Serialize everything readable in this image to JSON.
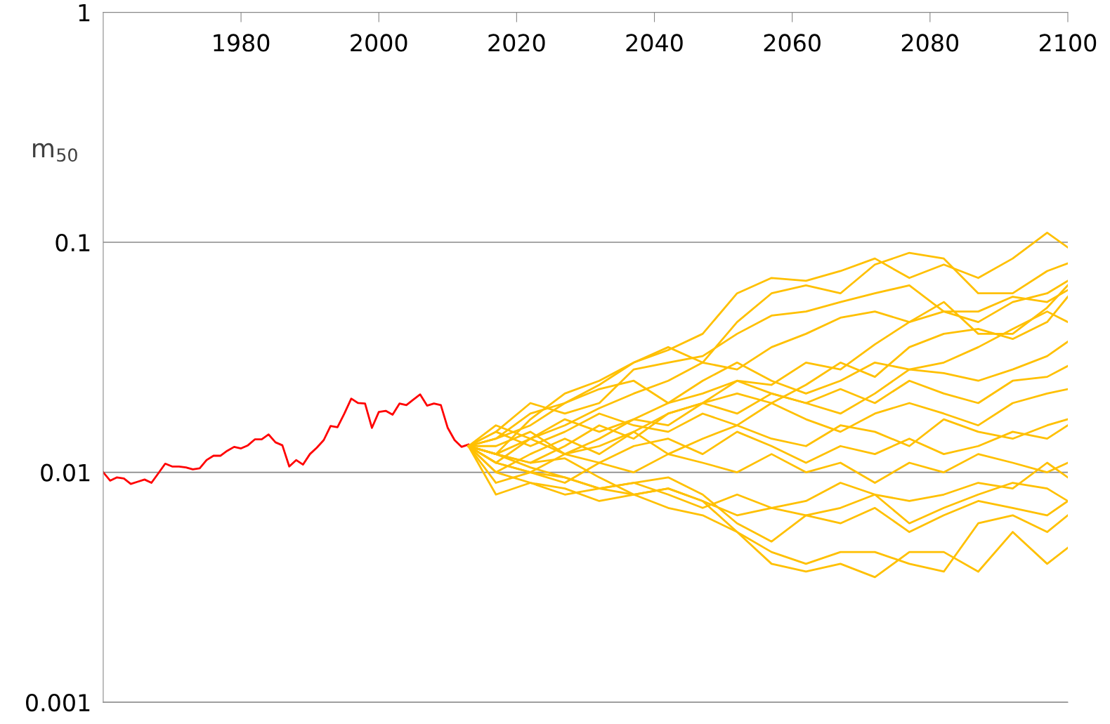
{
  "chart_data": {
    "type": "line",
    "ylabel": "m$_{50}$",
    "log": "y",
    "grid": "y",
    "line_style": "solid",
    "marker": "none",
    "xlim": [
      1960,
      2100
    ],
    "xticks": [
      1980,
      2000,
      2020,
      2040,
      2060,
      2080,
      2100
    ],
    "ylim": [
      0.001,
      1
    ],
    "yticks": [
      0.001,
      0.01,
      0.1,
      1
    ],
    "x": [
      2013,
      2017,
      2022,
      2027,
      2032,
      2037,
      2042,
      2047,
      2052,
      2057,
      2062,
      2067,
      2072,
      2077,
      2082,
      2087,
      2092,
      2097,
      2100
    ],
    "series": [
      {
        "color": "#ff0000",
        "x": [
          1960,
          1961,
          1962,
          1963,
          1964,
          1965,
          1966,
          1967,
          1968,
          1969,
          1970,
          1971,
          1972,
          1973,
          1974,
          1975,
          1976,
          1977,
          1978,
          1979,
          1980,
          1981,
          1982,
          1983,
          1984,
          1985,
          1986,
          1987,
          1988,
          1989,
          1990,
          1991,
          1992,
          1993,
          1994,
          1995,
          1996,
          1997,
          1998,
          1999,
          2000,
          2001,
          2002,
          2003,
          2004,
          2005,
          2006,
          2007,
          2008,
          2009,
          2010,
          2011,
          2012,
          2013
        ],
        "values": [
          0.01,
          0.0092,
          0.0095,
          0.0094,
          0.0089,
          0.0091,
          0.0093,
          0.009,
          0.0099,
          0.0109,
          0.0106,
          0.0106,
          0.0105,
          0.0103,
          0.0104,
          0.0113,
          0.0118,
          0.0118,
          0.0124,
          0.0129,
          0.0127,
          0.0131,
          0.0139,
          0.0139,
          0.0146,
          0.0135,
          0.0131,
          0.0106,
          0.0113,
          0.0108,
          0.012,
          0.0128,
          0.0138,
          0.0159,
          0.0157,
          0.018,
          0.0209,
          0.02,
          0.0199,
          0.0156,
          0.0183,
          0.0185,
          0.0178,
          0.0199,
          0.0196,
          0.0207,
          0.0218,
          0.0195,
          0.0199,
          0.0196,
          0.0156,
          0.0138,
          0.0129,
          0.0132
        ]
      },
      {
        "color": "#ffc000",
        "values": [
          0.013,
          0.014,
          0.018,
          0.02,
          0.024,
          0.03,
          0.034,
          0.04,
          0.06,
          0.07,
          0.068,
          0.075,
          0.085,
          0.07,
          0.08,
          0.07,
          0.085,
          0.11,
          0.095
        ]
      },
      {
        "color": "#ffc000",
        "values": [
          0.013,
          0.012,
          0.017,
          0.022,
          0.025,
          0.03,
          0.035,
          0.03,
          0.045,
          0.06,
          0.065,
          0.06,
          0.08,
          0.09,
          0.085,
          0.06,
          0.06,
          0.075,
          0.081
        ]
      },
      {
        "color": "#ffc000",
        "values": [
          0.013,
          0.015,
          0.02,
          0.018,
          0.02,
          0.028,
          0.03,
          0.032,
          0.04,
          0.048,
          0.05,
          0.055,
          0.06,
          0.065,
          0.05,
          0.045,
          0.055,
          0.06,
          0.068
        ]
      },
      {
        "color": "#ffc000",
        "values": [
          0.013,
          0.011,
          0.014,
          0.016,
          0.019,
          0.022,
          0.025,
          0.03,
          0.028,
          0.035,
          0.04,
          0.047,
          0.05,
          0.045,
          0.055,
          0.04,
          0.04,
          0.052,
          0.065
        ]
      },
      {
        "color": "#ffc000",
        "values": [
          0.013,
          0.016,
          0.014,
          0.017,
          0.015,
          0.017,
          0.02,
          0.022,
          0.025,
          0.024,
          0.03,
          0.028,
          0.036,
          0.045,
          0.05,
          0.05,
          0.058,
          0.055,
          0.062
        ]
      },
      {
        "color": "#ffc000",
        "values": [
          0.013,
          0.012,
          0.011,
          0.013,
          0.016,
          0.014,
          0.018,
          0.02,
          0.022,
          0.02,
          0.024,
          0.03,
          0.026,
          0.035,
          0.04,
          0.042,
          0.038,
          0.045,
          0.058
        ]
      },
      {
        "color": "#ffc000",
        "values": [
          0.013,
          0.014,
          0.016,
          0.02,
          0.023,
          0.025,
          0.02,
          0.025,
          0.03,
          0.025,
          0.022,
          0.025,
          0.03,
          0.028,
          0.03,
          0.035,
          0.042,
          0.05,
          0.045
        ]
      },
      {
        "color": "#ffc000",
        "values": [
          0.013,
          0.01,
          0.012,
          0.014,
          0.012,
          0.015,
          0.018,
          0.02,
          0.018,
          0.022,
          0.02,
          0.018,
          0.022,
          0.028,
          0.027,
          0.025,
          0.028,
          0.032,
          0.037
        ]
      },
      {
        "color": "#ffc000",
        "values": [
          0.013,
          0.013,
          0.015,
          0.012,
          0.014,
          0.017,
          0.016,
          0.02,
          0.025,
          0.022,
          0.02,
          0.023,
          0.02,
          0.025,
          0.022,
          0.02,
          0.025,
          0.026,
          0.029
        ]
      },
      {
        "color": "#ffc000",
        "values": [
          0.013,
          0.015,
          0.013,
          0.015,
          0.018,
          0.016,
          0.015,
          0.018,
          0.016,
          0.02,
          0.017,
          0.015,
          0.018,
          0.02,
          0.018,
          0.016,
          0.02,
          0.022,
          0.023
        ]
      },
      {
        "color": "#ffc000",
        "values": [
          0.013,
          0.012,
          0.014,
          0.012,
          0.013,
          0.015,
          0.012,
          0.014,
          0.016,
          0.014,
          0.013,
          0.016,
          0.015,
          0.013,
          0.017,
          0.015,
          0.014,
          0.016,
          0.017
        ]
      },
      {
        "color": "#ffc000",
        "values": [
          0.013,
          0.011,
          0.01,
          0.012,
          0.011,
          0.013,
          0.014,
          0.012,
          0.015,
          0.013,
          0.011,
          0.013,
          0.012,
          0.014,
          0.012,
          0.013,
          0.015,
          0.014,
          0.016
        ]
      },
      {
        "color": "#ffc000",
        "values": [
          0.013,
          0.009,
          0.01,
          0.009,
          0.011,
          0.01,
          0.012,
          0.011,
          0.01,
          0.012,
          0.01,
          0.011,
          0.009,
          0.011,
          0.01,
          0.012,
          0.011,
          0.01,
          0.011
        ]
      },
      {
        "color": "#ffc000",
        "values": [
          0.013,
          0.008,
          0.009,
          0.008,
          0.0085,
          0.009,
          0.008,
          0.007,
          0.008,
          0.007,
          0.0075,
          0.009,
          0.008,
          0.0075,
          0.008,
          0.009,
          0.0085,
          0.011,
          0.0095
        ]
      },
      {
        "color": "#ffc000",
        "values": [
          0.013,
          0.01,
          0.009,
          0.0085,
          0.0075,
          0.008,
          0.0085,
          0.0075,
          0.0065,
          0.007,
          0.0065,
          0.007,
          0.008,
          0.006,
          0.007,
          0.008,
          0.009,
          0.0085,
          0.0075
        ]
      },
      {
        "color": "#ffc000",
        "values": [
          0.013,
          0.011,
          0.01,
          0.0095,
          0.0085,
          0.009,
          0.0095,
          0.008,
          0.006,
          0.005,
          0.0065,
          0.006,
          0.007,
          0.0055,
          0.0065,
          0.0075,
          0.007,
          0.0065,
          0.0075
        ]
      },
      {
        "color": "#ffc000",
        "values": [
          0.013,
          0.012,
          0.0105,
          0.0095,
          0.0085,
          0.008,
          0.0085,
          0.0075,
          0.0055,
          0.0045,
          0.004,
          0.0045,
          0.0045,
          0.004,
          0.0037,
          0.006,
          0.0065,
          0.0055,
          0.0065
        ]
      },
      {
        "color": "#ffc000",
        "values": [
          0.013,
          0.012,
          0.011,
          0.0115,
          0.0095,
          0.008,
          0.007,
          0.0065,
          0.0055,
          0.004,
          0.0037,
          0.004,
          0.0035,
          0.0045,
          0.0045,
          0.0037,
          0.0055,
          0.004,
          0.0047
        ]
      }
    ]
  }
}
